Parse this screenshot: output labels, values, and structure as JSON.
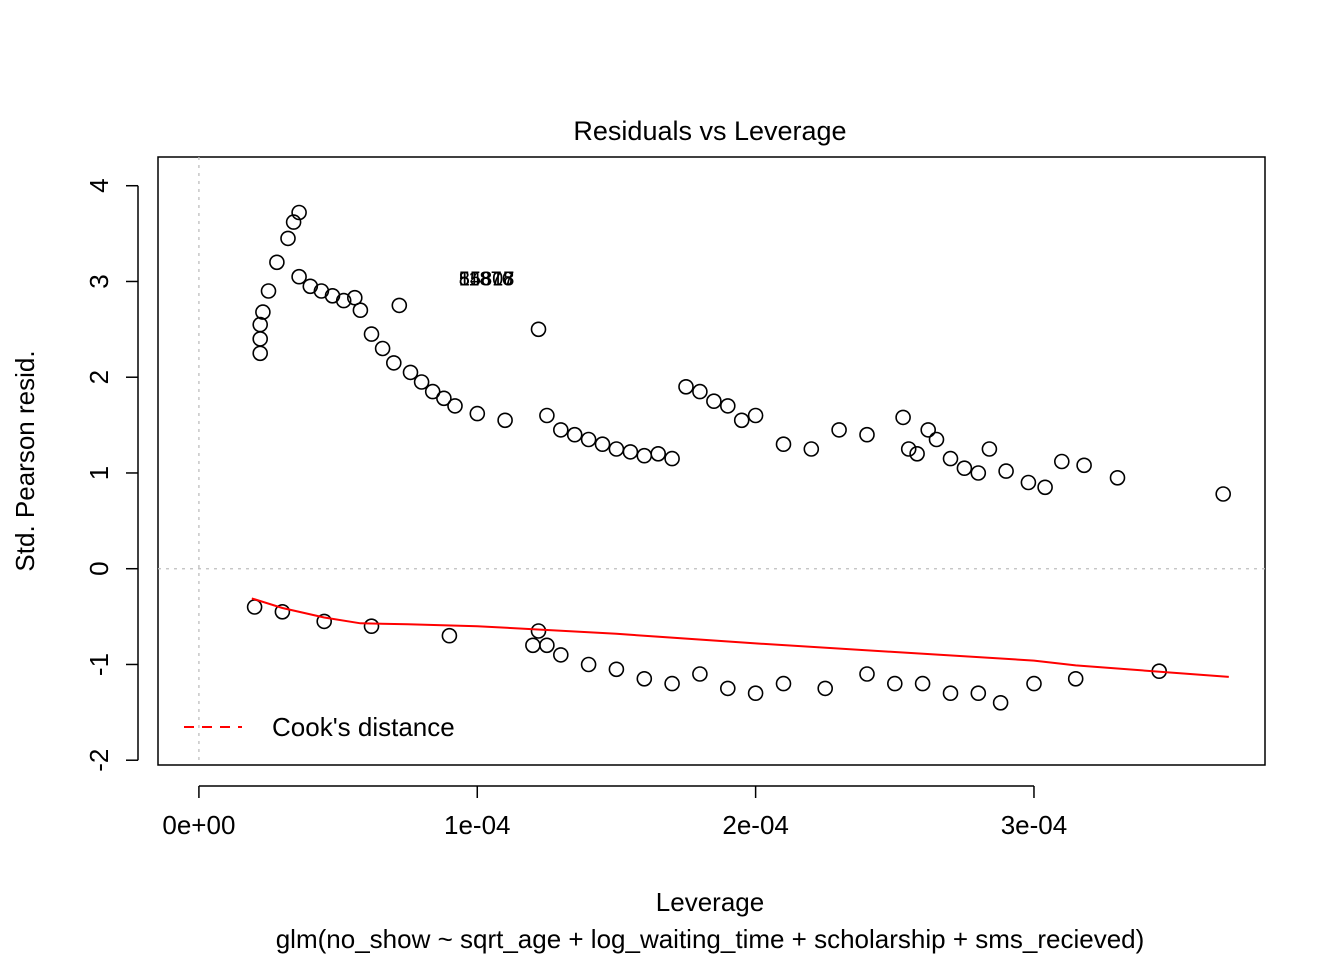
{
  "chart_data": {
    "type": "scatter",
    "title": "Residuals vs Leverage",
    "xlabel": "Leverage",
    "ylabel": "Std. Pearson resid.",
    "subtitle": "glm(no_show ~ sqrt_age + log_waiting_time + scholarship + sms_recieved)",
    "xlim": [
      -1.47e-05,
      0.000383
    ],
    "ylim": [
      -2.05,
      4.3
    ],
    "x_ticks": [
      0,
      0.0001,
      0.0002,
      0.0003
    ],
    "x_tick_labels": [
      "0e+00",
      "1e-04",
      "2e-04",
      "3e-04"
    ],
    "y_ticks": [
      -2,
      -1,
      0,
      1,
      2,
      3,
      4
    ],
    "y_tick_labels": [
      "-2",
      "-1",
      "0",
      "1",
      "2",
      "3",
      "4"
    ],
    "reference_lines": {
      "h": 0,
      "v": 0,
      "style": "dotted",
      "color": "#bebebe"
    },
    "legend": {
      "position": "bottom-left",
      "label": "Cook's distance",
      "line_style": "dashed",
      "color": "#ff0000"
    },
    "point_labels": [
      {
        "text": "84807",
        "x": 9.05e-05,
        "y": 3.03
      },
      {
        "text": "55318",
        "x": 9.05e-05,
        "y": 3.03
      },
      {
        "text": "11876",
        "x": 9.05e-05,
        "y": 3.03
      }
    ],
    "smooth_line": {
      "color": "#ff0000",
      "x": [
        1.9e-05,
        3e-05,
        4.5e-05,
        5.8e-05,
        7.5e-05,
        0.0001,
        0.00015,
        0.0002,
        0.00025,
        0.0003,
        0.000315,
        0.00037
      ],
      "y": [
        -0.31,
        -0.41,
        -0.51,
        -0.57,
        -0.58,
        -0.6,
        -0.68,
        -0.78,
        -0.87,
        -0.96,
        -1.01,
        -1.13
      ]
    },
    "series": [
      {
        "type": "points",
        "x": [
          3.6e-05,
          3.4e-05,
          3.2e-05,
          2.8e-05,
          2.5e-05,
          2.3e-05,
          2.2e-05,
          2.2e-05,
          2.2e-05,
          3.6e-05,
          4e-05,
          4.4e-05,
          4.8e-05,
          5.2e-05,
          5.6e-05,
          7.2e-05,
          5.8e-05,
          6.2e-05,
          6.6e-05,
          7e-05,
          7.6e-05,
          8e-05,
          8.4e-05,
          8.8e-05,
          9.2e-05,
          0.0001,
          0.00011,
          0.000122,
          0.000125,
          0.00013,
          0.000135,
          0.00014,
          0.000145,
          0.00015,
          0.000155,
          0.00016,
          0.000165,
          0.00017,
          0.000175,
          0.00018,
          0.000185,
          0.00019,
          0.000195,
          0.0002,
          0.00021,
          0.00022,
          0.00023,
          0.00024,
          0.000253,
          0.000255,
          0.000258,
          0.000262,
          0.000265,
          0.00027,
          0.000275,
          0.00028,
          0.000284,
          0.00029,
          0.000298,
          0.000304,
          0.00031,
          0.000318,
          0.00033,
          0.000368,
          0.000122,
          0.000125,
          0.00013,
          0.00014,
          0.00015,
          0.00016,
          0.00017,
          0.00018,
          0.00019,
          0.0002,
          0.00021,
          0.000225,
          0.00024,
          0.00026,
          0.00028,
          0.0003,
          0.000315,
          0.000345,
          0.00025,
          0.00027,
          0.000288,
          2e-05,
          3e-05,
          4.5e-05,
          6.2e-05,
          9e-05,
          0.00012
        ],
        "y": [
          3.72,
          3.62,
          3.45,
          3.2,
          2.9,
          2.68,
          2.55,
          2.4,
          2.25,
          3.05,
          2.95,
          2.9,
          2.85,
          2.8,
          2.83,
          2.75,
          2.7,
          2.45,
          2.3,
          2.15,
          2.05,
          1.95,
          1.85,
          1.78,
          1.7,
          1.62,
          1.55,
          2.5,
          1.6,
          1.45,
          1.4,
          1.35,
          1.3,
          1.25,
          1.22,
          1.18,
          1.2,
          1.15,
          1.9,
          1.85,
          1.75,
          1.7,
          1.55,
          1.6,
          1.3,
          1.25,
          1.45,
          1.4,
          1.58,
          1.25,
          1.2,
          1.45,
          1.35,
          1.15,
          1.05,
          1.0,
          1.25,
          1.02,
          0.9,
          0.85,
          1.12,
          1.08,
          0.95,
          0.78,
          -0.65,
          -0.8,
          -0.9,
          -1.0,
          -1.05,
          -1.15,
          -1.2,
          -1.1,
          -1.25,
          -1.3,
          -1.2,
          -1.25,
          -1.1,
          -1.2,
          -1.3,
          -1.2,
          -1.15,
          -1.07,
          -1.2,
          -1.3,
          -1.4,
          -0.4,
          -0.45,
          -0.55,
          -0.6,
          -0.7,
          -0.8
        ]
      }
    ]
  }
}
